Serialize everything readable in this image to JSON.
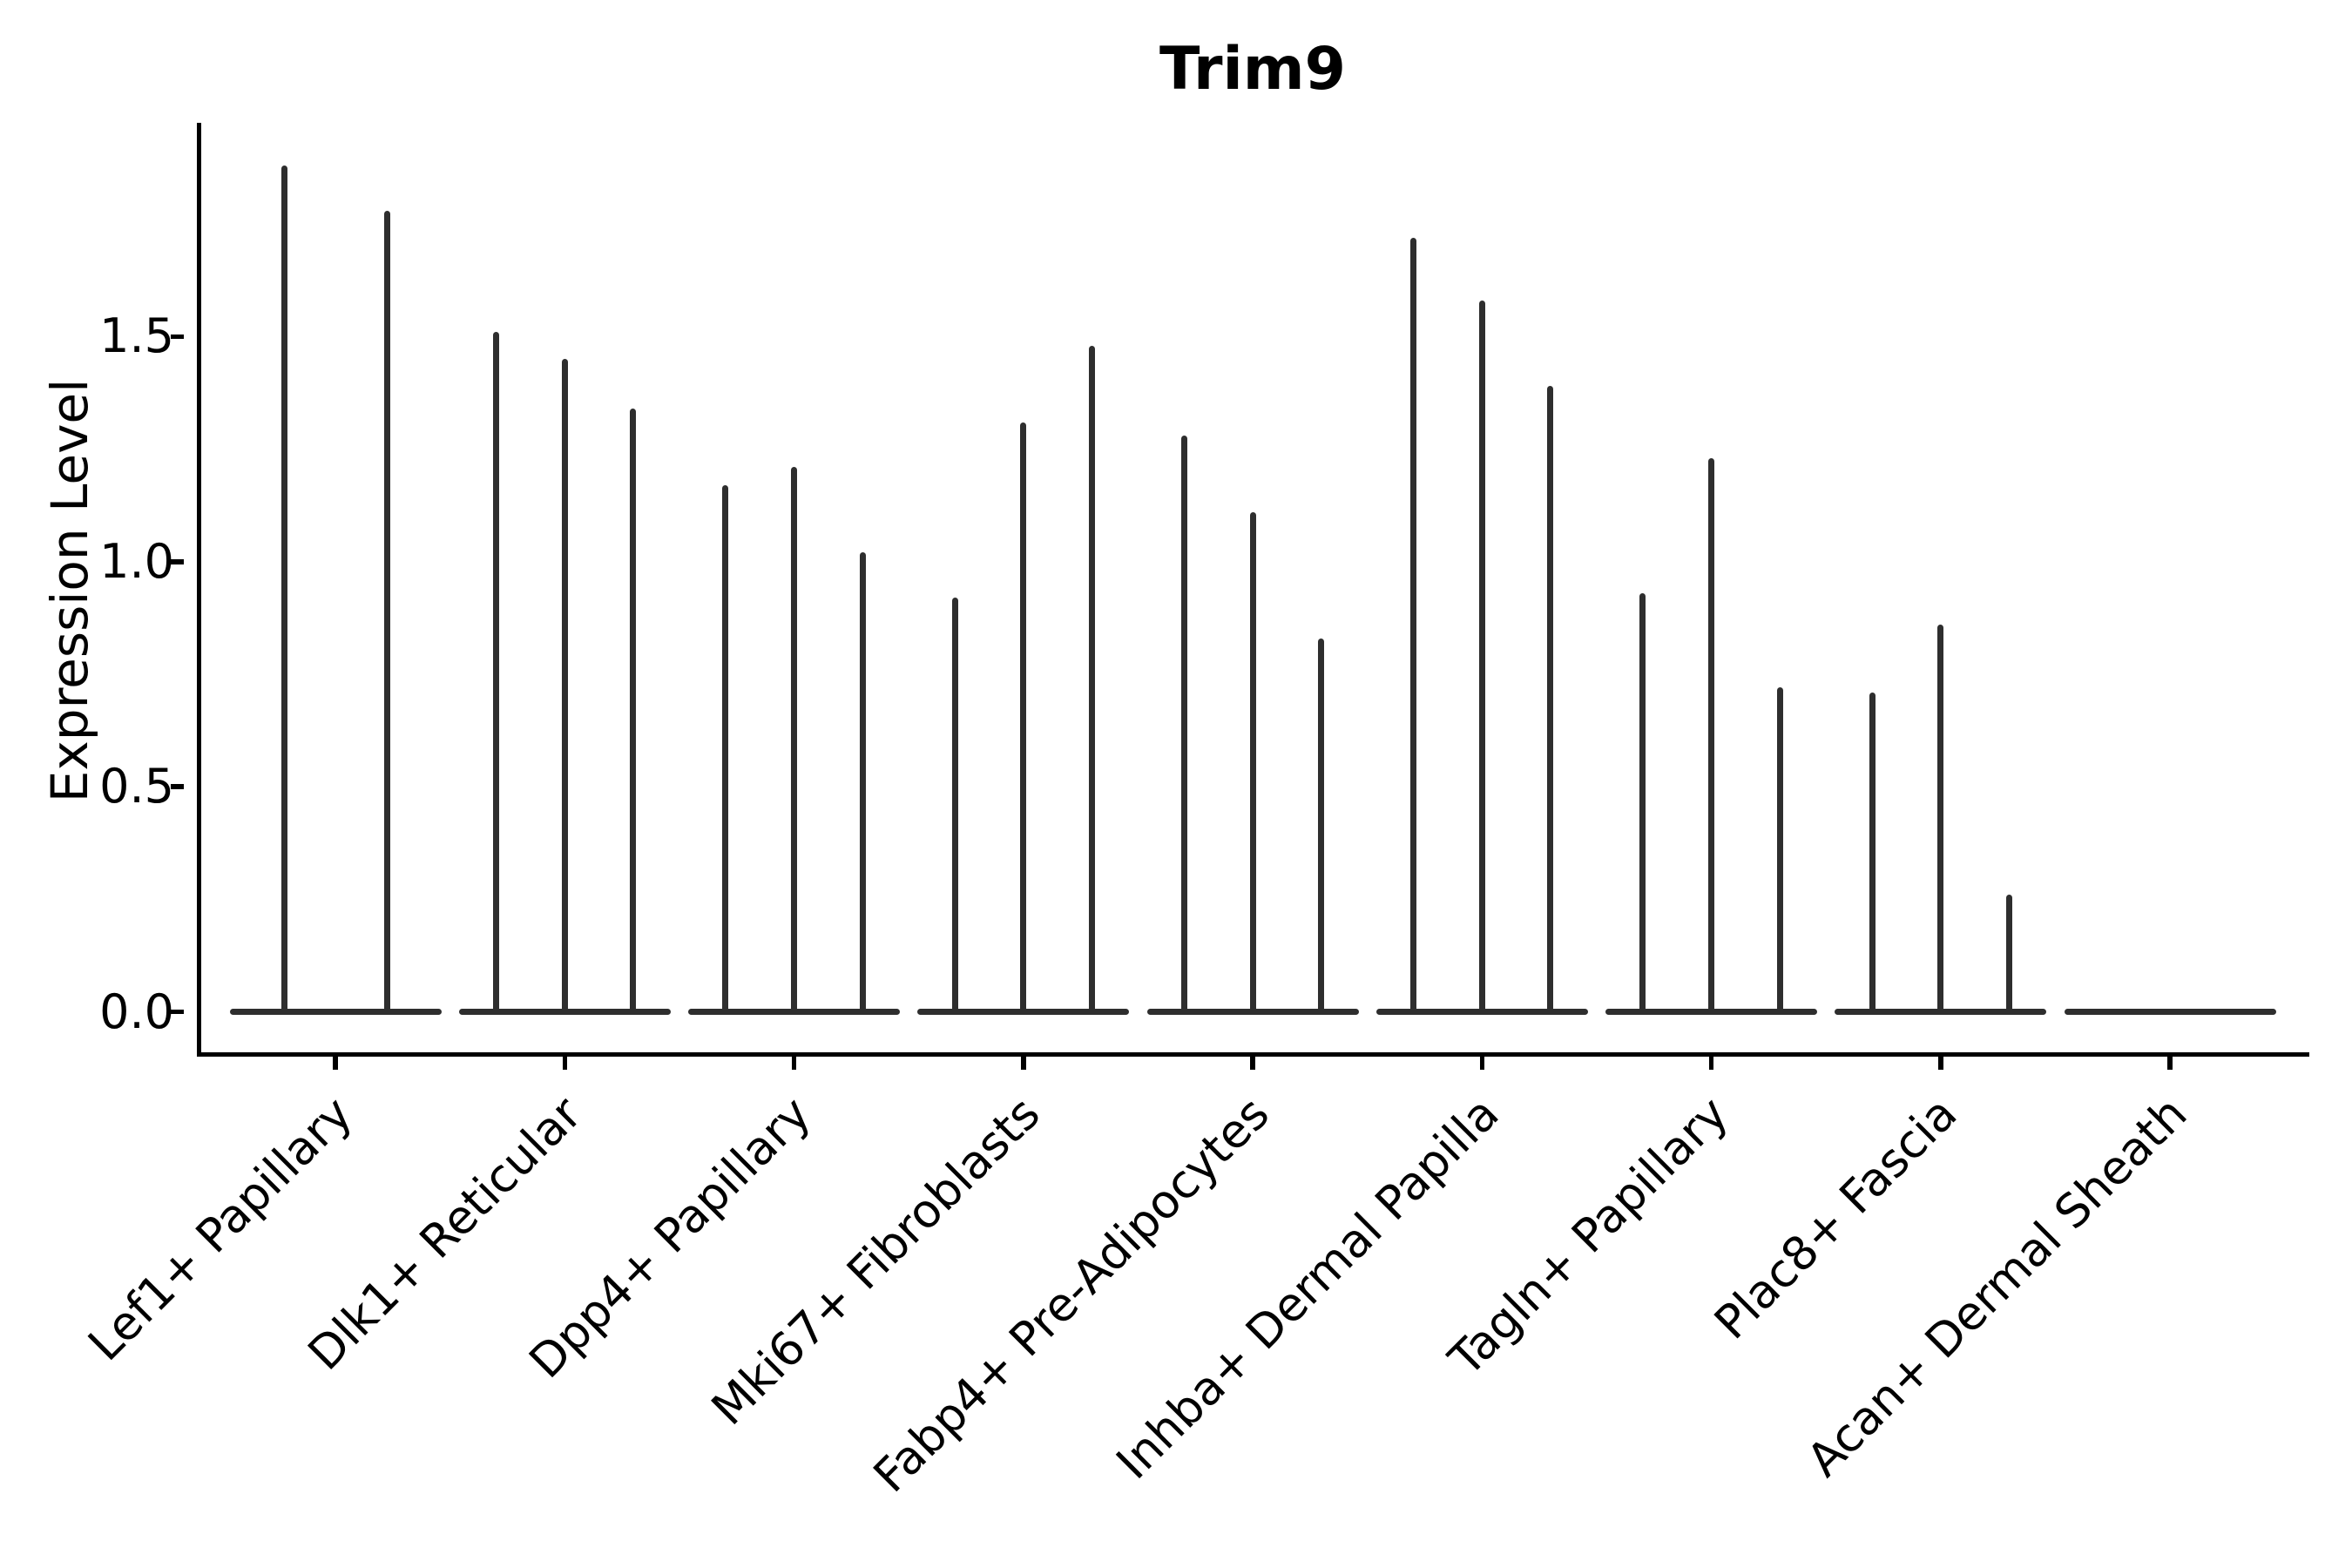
{
  "title": "Trim9",
  "axes": {
    "ylabel": "Expression Level",
    "ytick_labels": [
      "0.0",
      "0.5",
      "1.0",
      "1.5"
    ]
  },
  "chart_data": {
    "type": "violin",
    "title": "Trim9",
    "xlabel": "",
    "ylabel": "Expression Level",
    "ylim": [
      0,
      1.97
    ],
    "yticks": [
      0,
      0.5,
      1.0,
      1.5
    ],
    "grid": false,
    "legend": "none",
    "violin_color": "#2e2e2e",
    "axis_color": "#000000",
    "categories": [
      "Lef1+ Papillary",
      "Dlk1+ Reticular",
      "Dpp4+ Papillary",
      "Mki67+ Fibroblasts",
      "Fabp4+ Pre-Adipocytes",
      "Inhba+ Dermal Papilla",
      "Tagln+ Papillary",
      "Plac8+ Fascia",
      "Acan+ Dermal Sheath"
    ],
    "series": [
      {
        "category": "Lef1+ Papillary",
        "violin_peaks": [
          1.88,
          1.78
        ]
      },
      {
        "category": "Dlk1+ Reticular",
        "violin_peaks": [
          1.51,
          1.45,
          1.34
        ]
      },
      {
        "category": "Dpp4+ Papillary",
        "violin_peaks": [
          1.17,
          1.21,
          1.02
        ]
      },
      {
        "category": "Mki67+ Fibroblasts",
        "violin_peaks": [
          0.92,
          1.31,
          1.48
        ]
      },
      {
        "category": "Fabp4+ Pre-Adipocytes",
        "violin_peaks": [
          1.28,
          1.11,
          0.83
        ]
      },
      {
        "category": "Inhba+ Dermal Papilla",
        "violin_peaks": [
          1.72,
          1.58,
          1.39
        ]
      },
      {
        "category": "Tagln+ Papillary",
        "violin_peaks": [
          0.93,
          1.23,
          0.72
        ]
      },
      {
        "category": "Plac8+ Fascia",
        "violin_peaks": [
          0.71,
          0.86,
          0.26
        ]
      },
      {
        "category": "Acan+ Dermal Sheath",
        "violin_peaks": [
          0,
          0,
          0
        ]
      }
    ],
    "note": "Seurat-style violin plot: each violin collapses to a wide flat base at expression 0 with a thin spike rising to its maximum value"
  }
}
